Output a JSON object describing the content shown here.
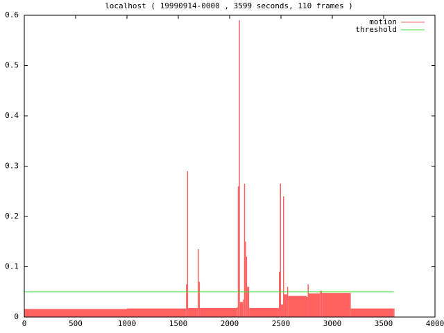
{
  "chart_data": {
    "type": "impulse",
    "title": "localhost ( 19990914-0000 , 3599 seconds, 110 frames )",
    "xlim": [
      0,
      4000
    ],
    "xticks": [
      0,
      500,
      1000,
      1500,
      2000,
      2500,
      3000,
      3500,
      4000
    ],
    "ylim": [
      0,
      0.6
    ],
    "yticks": [
      0,
      0.1,
      0.2,
      0.3,
      0.4,
      0.5,
      0.6
    ],
    "legend": "top-right",
    "series": [
      {
        "name": "motion",
        "color": "#ff6060",
        "style": "impulses",
        "x": [
          0,
          500,
          1000,
          1570,
          1575,
          1585,
          1595,
          1680,
          1690,
          1700,
          1710,
          2070,
          2080,
          2090,
          2100,
          2130,
          2140,
          2150,
          2160,
          2170,
          2190,
          2470,
          2480,
          2490,
          2500,
          2520,
          2530,
          2560,
          2570,
          2750,
          2760,
          2770,
          2880,
          2900,
          3170,
          3180,
          3599
        ],
        "values": [
          0.016,
          0.016,
          0.017,
          0.017,
          0.065,
          0.29,
          0.018,
          0.018,
          0.135,
          0.07,
          0.018,
          0.02,
          0.26,
          0.59,
          0.03,
          0.035,
          0.265,
          0.15,
          0.12,
          0.06,
          0.018,
          0.018,
          0.09,
          0.265,
          0.025,
          0.24,
          0.045,
          0.06,
          0.042,
          0.04,
          0.065,
          0.047,
          0.052,
          0.048,
          0.048,
          0.017,
          0.017
        ]
      },
      {
        "name": "threshold",
        "color": "#40e040",
        "style": "line",
        "x": [
          0,
          3599
        ],
        "values": [
          0.05,
          0.05
        ]
      }
    ]
  }
}
